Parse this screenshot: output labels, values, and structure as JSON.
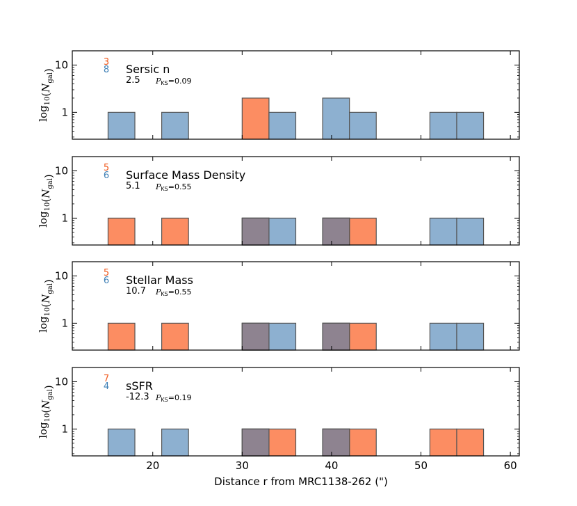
{
  "chart_data": {
    "type": "bar",
    "xlabel": "Distance r from MRC1138-262 (\")",
    "ylabel_main": "log",
    "ylabel_sub": "10",
    "ylabel_var": "N",
    "ylabel_varsub": "gal",
    "xlim": [
      11,
      61
    ],
    "x_ticks": [
      20,
      30,
      40,
      50,
      60
    ],
    "ylim_log": [
      0.27,
      20
    ],
    "y_ticks": [
      {
        "value": 1,
        "label": "1"
      },
      {
        "value": 10,
        "label": "10"
      }
    ],
    "colors": {
      "orange": "#fc8d62",
      "blue": "#8db0d0",
      "overlap": "#8e8390"
    },
    "count_colors": {
      "orange": "#f05a1e",
      "blue": "#3d7fb5"
    },
    "bin_width": 3,
    "panels": [
      {
        "title": "Sersic n",
        "count_orange": "3",
        "count_blue": "8",
        "median": "2.5",
        "pks": "=0.09",
        "orange": [
          {
            "x0": 30,
            "n": 2
          }
        ],
        "blue": [
          {
            "x0": 15,
            "n": 1
          },
          {
            "x0": 21,
            "n": 1
          },
          {
            "x0": 33,
            "n": 1
          },
          {
            "x0": 39,
            "n": 2
          },
          {
            "x0": 42,
            "n": 1
          },
          {
            "x0": 51,
            "n": 1
          },
          {
            "x0": 54,
            "n": 1
          }
        ]
      },
      {
        "title": "Surface Mass Density",
        "count_orange": "5",
        "count_blue": "6",
        "median": "5.1",
        "pks": "=0.55",
        "orange": [
          {
            "x0": 15,
            "n": 1
          },
          {
            "x0": 21,
            "n": 1
          },
          {
            "x0": 30,
            "n": 1
          },
          {
            "x0": 39,
            "n": 1
          },
          {
            "x0": 42,
            "n": 1
          }
        ],
        "blue": [
          {
            "x0": 30,
            "n": 1
          },
          {
            "x0": 33,
            "n": 1
          },
          {
            "x0": 39,
            "n": 1
          },
          {
            "x0": 51,
            "n": 1
          },
          {
            "x0": 54,
            "n": 1
          }
        ]
      },
      {
        "title": "Stellar Mass",
        "count_orange": "5",
        "count_blue": "6",
        "median": "10.7",
        "pks": "=0.55",
        "orange": [
          {
            "x0": 15,
            "n": 1
          },
          {
            "x0": 21,
            "n": 1
          },
          {
            "x0": 30,
            "n": 1
          },
          {
            "x0": 39,
            "n": 1
          },
          {
            "x0": 42,
            "n": 1
          }
        ],
        "blue": [
          {
            "x0": 30,
            "n": 1
          },
          {
            "x0": 33,
            "n": 1
          },
          {
            "x0": 39,
            "n": 1
          },
          {
            "x0": 51,
            "n": 1
          },
          {
            "x0": 54,
            "n": 1
          }
        ]
      },
      {
        "title": "sSFR",
        "count_orange": "7",
        "count_blue": "4",
        "median": "-12.3",
        "pks": "=0.19",
        "orange": [
          {
            "x0": 30,
            "n": 1
          },
          {
            "x0": 33,
            "n": 1
          },
          {
            "x0": 39,
            "n": 1
          },
          {
            "x0": 42,
            "n": 1
          },
          {
            "x0": 51,
            "n": 1
          },
          {
            "x0": 54,
            "n": 1
          }
        ],
        "blue": [
          {
            "x0": 15,
            "n": 1
          },
          {
            "x0": 21,
            "n": 1
          },
          {
            "x0": 30,
            "n": 1
          },
          {
            "x0": 39,
            "n": 1
          }
        ]
      }
    ]
  }
}
